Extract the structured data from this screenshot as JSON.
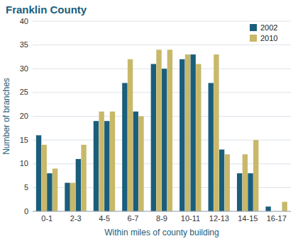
{
  "chart_data": {
    "type": "bar",
    "title": "Franklin County",
    "x_label": "Within miles of county building",
    "y_label": "Number of branches",
    "categories": [
      "0-1",
      null,
      "2-3",
      null,
      "4-5",
      null,
      "6-7",
      null,
      "8-9",
      null,
      "10-11",
      null,
      "12-13",
      null,
      "14-15",
      null,
      "16-17",
      null
    ],
    "series": [
      {
        "name": "2002",
        "color": "#1b5e7b",
        "values": [
          16,
          8,
          6,
          11,
          19,
          19,
          27,
          21,
          31,
          30,
          32,
          33,
          27,
          13,
          8,
          8,
          1,
          0
        ]
      },
      {
        "name": "2010",
        "color": "#c8b86a",
        "values": [
          14,
          9,
          6,
          14,
          21,
          21,
          32,
          20,
          34,
          34,
          33,
          31,
          33,
          12,
          12,
          15,
          0,
          2
        ]
      }
    ],
    "ylim": [
      0,
      40
    ],
    "yticks": [
      0,
      5,
      10,
      15,
      20,
      25,
      30,
      35,
      40
    ],
    "grid": true,
    "legend": "upper right"
  }
}
